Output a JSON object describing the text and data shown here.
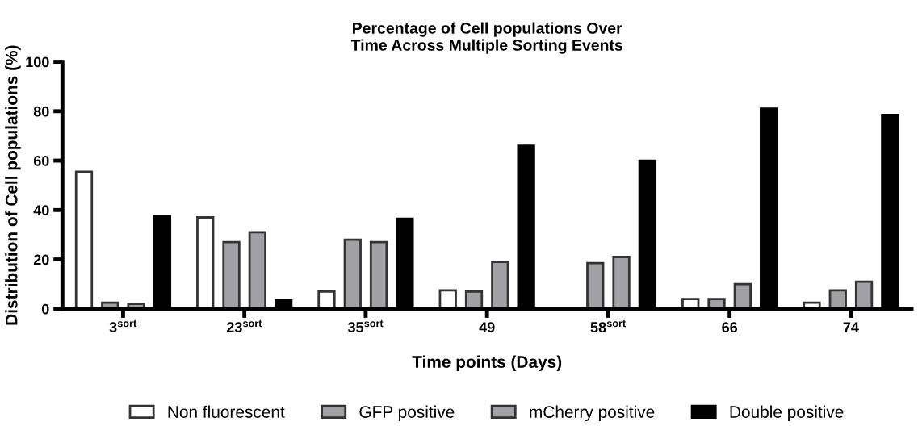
{
  "chart_data": {
    "type": "bar",
    "title": "Percentage of Cell populations Over\nTime Across Multiple Sorting Events",
    "xlabel": "Time points (Days)",
    "ylabel": "Distribution of Cell populations (%)",
    "categories": [
      "3$^{sort}$",
      "23$^{sort}$",
      "35$^{sort}$",
      "49",
      "58$^{sort}$",
      "66",
      "74"
    ],
    "series": [
      {
        "name": "Non fluorescent",
        "color": "#ffffff",
        "values": [
          55.5,
          37,
          7,
          7.5,
          null,
          4,
          2.5
        ]
      },
      {
        "name": "GFP positive",
        "color": "#a0a0a5",
        "values": [
          2.5,
          27,
          28,
          7,
          18.5,
          4,
          7.5
        ]
      },
      {
        "name": "mCherry positive",
        "color": "#a0a0a5",
        "values": [
          2,
          31,
          27,
          19,
          21,
          10,
          11
        ]
      },
      {
        "name": "Double positive",
        "color": "#000000",
        "values": [
          37.5,
          3.5,
          36.5,
          66,
          60,
          81,
          78.5
        ]
      }
    ],
    "ylim": [
      0,
      100
    ],
    "yticks": [
      0,
      20,
      40,
      60,
      80,
      100
    ],
    "grid": false,
    "legend": "bottom"
  }
}
